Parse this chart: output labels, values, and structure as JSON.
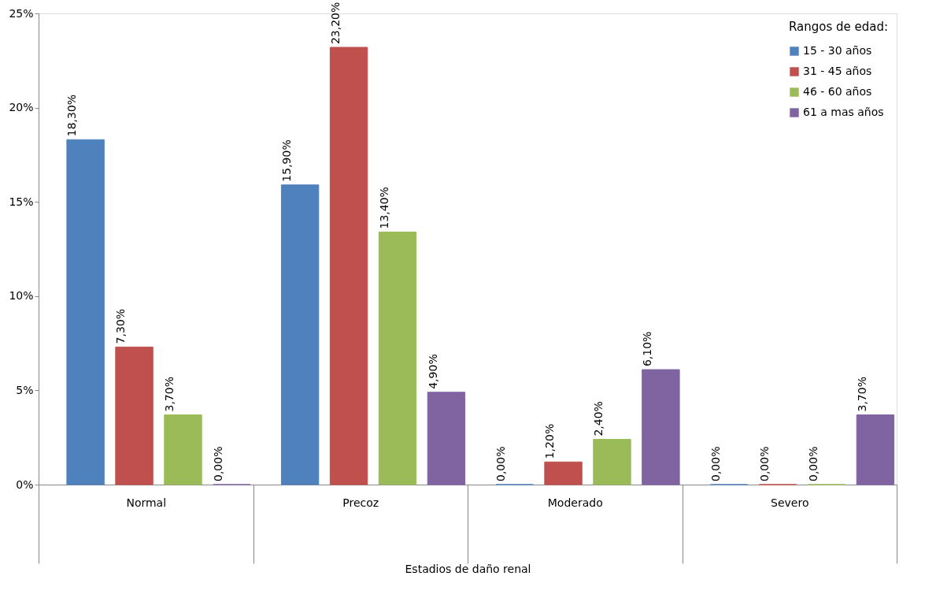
{
  "chart_data": {
    "type": "bar",
    "categories": [
      "Normal",
      "Precoz",
      "Moderado",
      "Severo"
    ],
    "xlabel": "Estadios de daño renal",
    "legend_title": "Rangos de edad:",
    "legend": "top right",
    "grid": false,
    "ylim": [
      0,
      25
    ],
    "yticks": [
      {
        "value": 0,
        "label": "0%"
      },
      {
        "value": 5,
        "label": "5%"
      },
      {
        "value": 10,
        "label": "10%"
      },
      {
        "value": 15,
        "label": "15%"
      },
      {
        "value": 20,
        "label": "20%"
      },
      {
        "value": 25,
        "label": "25%"
      }
    ],
    "series": [
      {
        "name": "15 - 30 años",
        "color": "#4f81bd",
        "values": [
          18.3,
          15.9,
          0,
          0
        ],
        "value_labels": [
          "18,30%",
          "15,90%",
          "0,00%",
          "0,00%"
        ]
      },
      {
        "name": "31 - 45 años",
        "color": "#c0504d",
        "values": [
          7.3,
          23.2,
          1.2,
          0
        ],
        "value_labels": [
          "7,30%",
          "23,20%",
          "1,20%",
          "0,00%"
        ]
      },
      {
        "name": "46 - 60 años",
        "color": "#9bbb59",
        "values": [
          3.7,
          13.4,
          2.4,
          0
        ],
        "value_labels": [
          "3,70%",
          "13,40%",
          "2,40%",
          "0,00%"
        ]
      },
      {
        "name": "61 a mas años",
        "color": "#8064a2",
        "values": [
          0,
          4.9,
          6.1,
          3.7
        ],
        "value_labels": [
          "0,00%",
          "4,90%",
          "6,10%",
          "3,70%"
        ]
      }
    ]
  }
}
